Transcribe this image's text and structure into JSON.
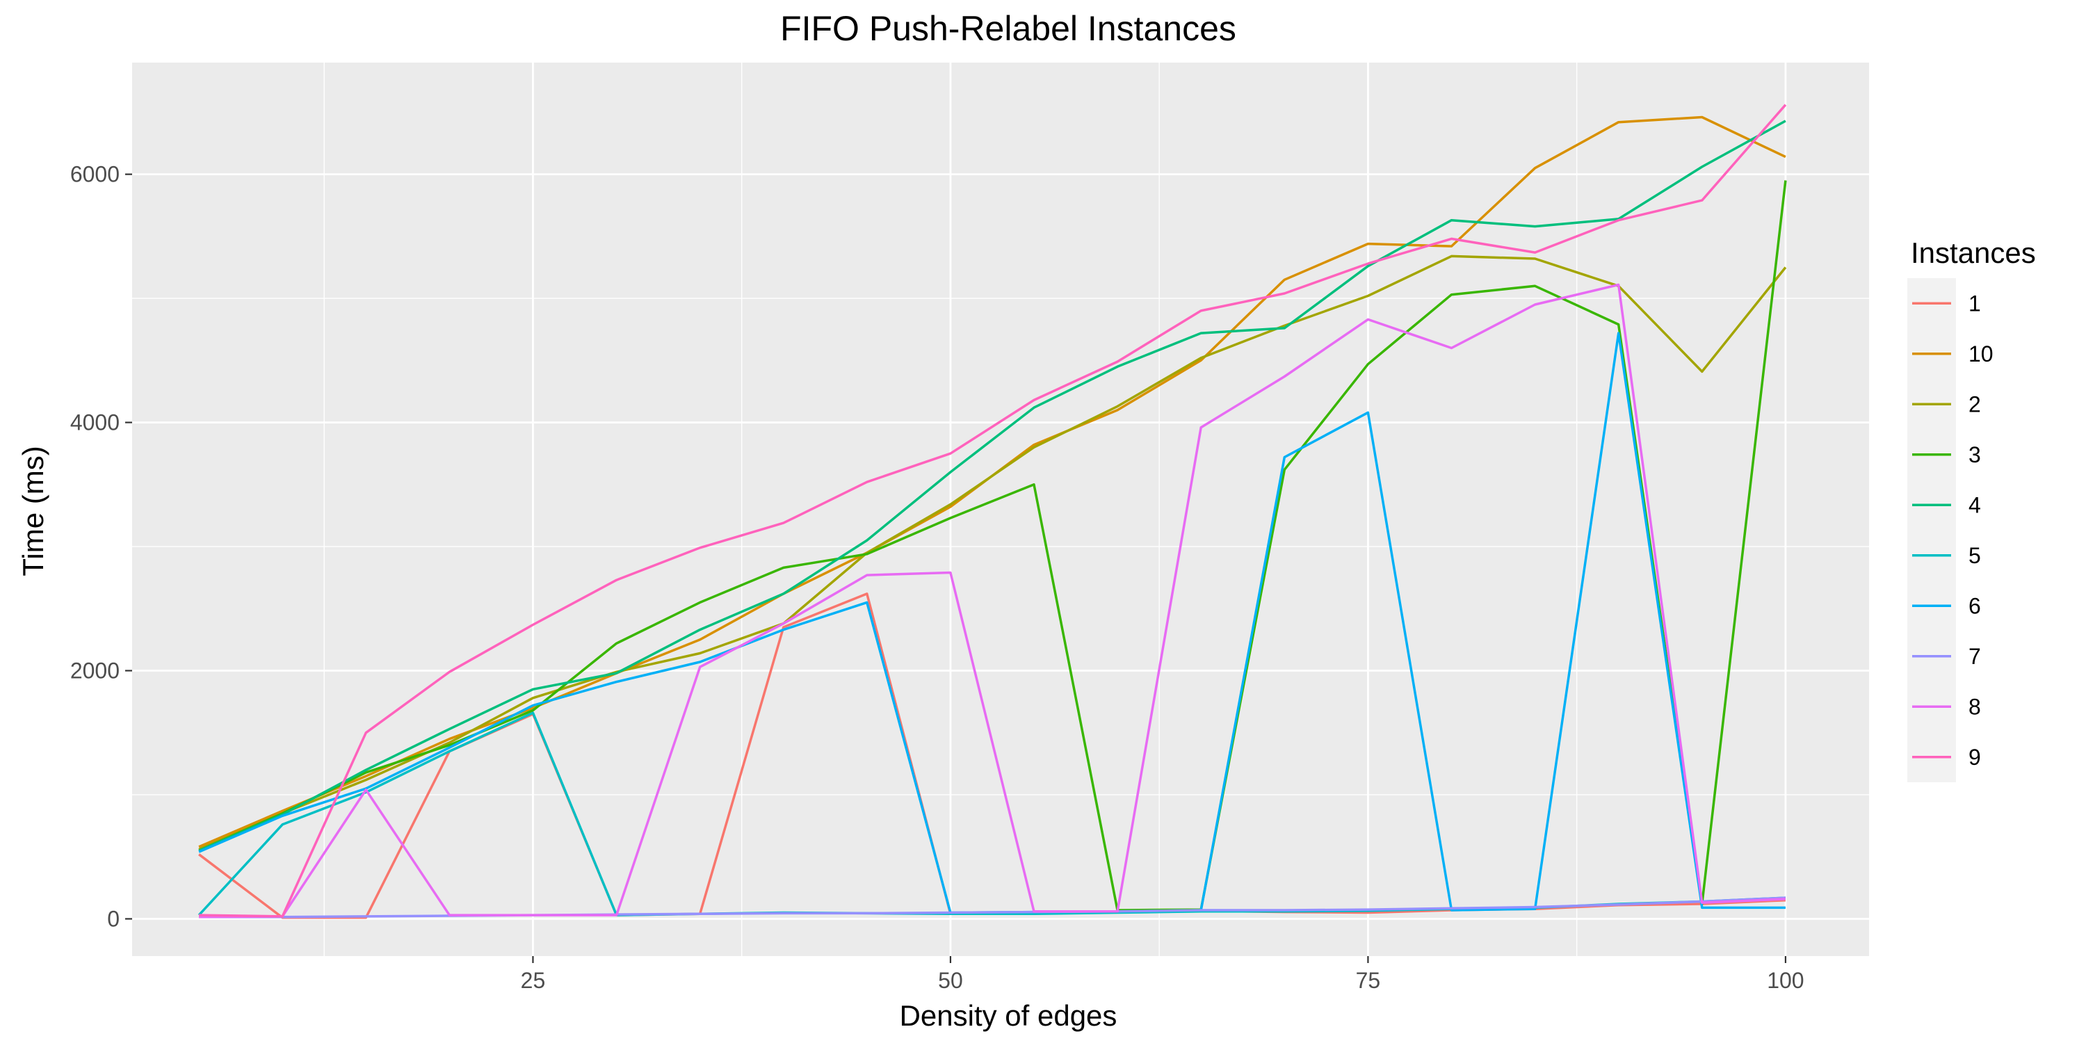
{
  "chart_data": {
    "type": "line",
    "title": "FIFO Push-Relabel Instances",
    "xlabel": "Density of edges",
    "ylabel": "Time (ms)",
    "xlim": [
      1,
      105
    ],
    "ylim": [
      -300,
      6900
    ],
    "x_ticks": [
      25,
      50,
      75,
      100
    ],
    "y_ticks": [
      0,
      2000,
      4000,
      6000
    ],
    "grid": true,
    "legend": {
      "title": "Instances",
      "position": "right"
    },
    "x": [
      5,
      10,
      15,
      20,
      25,
      30,
      35,
      40,
      45,
      50,
      55,
      60,
      65,
      70,
      75,
      80,
      85,
      90,
      95,
      100
    ],
    "series": [
      {
        "name": "1",
        "color": "#F8766D",
        "values": [
          520,
          10,
          10,
          1350,
          1650,
          30,
          40,
          2350,
          2620,
          40,
          45,
          60,
          65,
          55,
          50,
          70,
          80,
          110,
          120,
          150
        ]
      },
      {
        "name": "10",
        "color": "#D89000",
        "values": [
          580,
          870,
          1150,
          1450,
          1700,
          1980,
          2250,
          2620,
          2950,
          3320,
          3820,
          4100,
          4500,
          5150,
          5440,
          5420,
          6050,
          6420,
          6460,
          6140
        ]
      },
      {
        "name": "2",
        "color": "#A3A500",
        "values": [
          560,
          850,
          1120,
          1420,
          1780,
          1990,
          2140,
          2380,
          2950,
          3340,
          3800,
          4130,
          4520,
          4780,
          5020,
          5340,
          5320,
          5100,
          4410,
          5250
        ]
      },
      {
        "name": "3",
        "color": "#39B600",
        "values": [
          550,
          850,
          1180,
          1400,
          1680,
          2220,
          2550,
          2830,
          2940,
          3230,
          3500,
          70,
          75,
          3620,
          4470,
          5030,
          5100,
          4790,
          120,
          5950
        ]
      },
      {
        "name": "4",
        "color": "#00BF7D",
        "values": [
          550,
          840,
          1200,
          1530,
          1850,
          1980,
          2330,
          2620,
          3050,
          3600,
          4120,
          4450,
          4720,
          4760,
          5260,
          5630,
          5580,
          5640,
          6060,
          6430
        ]
      },
      {
        "name": "5",
        "color": "#00BFC4",
        "values": [
          30,
          760,
          1020,
          1350,
          1660,
          30,
          40,
          50,
          45,
          40,
          40,
          50,
          60,
          60,
          65,
          80,
          90,
          120,
          140,
          170
        ]
      },
      {
        "name": "6",
        "color": "#00B0F6",
        "values": [
          540,
          830,
          1050,
          1380,
          1720,
          1910,
          2070,
          2330,
          2550,
          50,
          55,
          60,
          70,
          3720,
          4080,
          70,
          80,
          4720,
          90,
          90
        ]
      },
      {
        "name": "7",
        "color": "#9590FF",
        "values": [
          15,
          15,
          20,
          25,
          30,
          35,
          40,
          45,
          45,
          50,
          55,
          60,
          70,
          70,
          75,
          85,
          95,
          115,
          140,
          170
        ]
      },
      {
        "name": "8",
        "color": "#E76BF3",
        "values": [
          15,
          20,
          1040,
          30,
          30,
          30,
          2030,
          2380,
          2770,
          2790,
          60,
          60,
          3960,
          4370,
          4830,
          4600,
          4950,
          5110,
          130,
          160
        ]
      },
      {
        "name": "9",
        "color": "#FF62BC",
        "values": [
          30,
          20,
          1500,
          1990,
          2370,
          2730,
          2990,
          3190,
          3520,
          3750,
          4180,
          4490,
          4900,
          5040,
          5280,
          5480,
          5370,
          5630,
          5790,
          6560
        ]
      }
    ]
  }
}
